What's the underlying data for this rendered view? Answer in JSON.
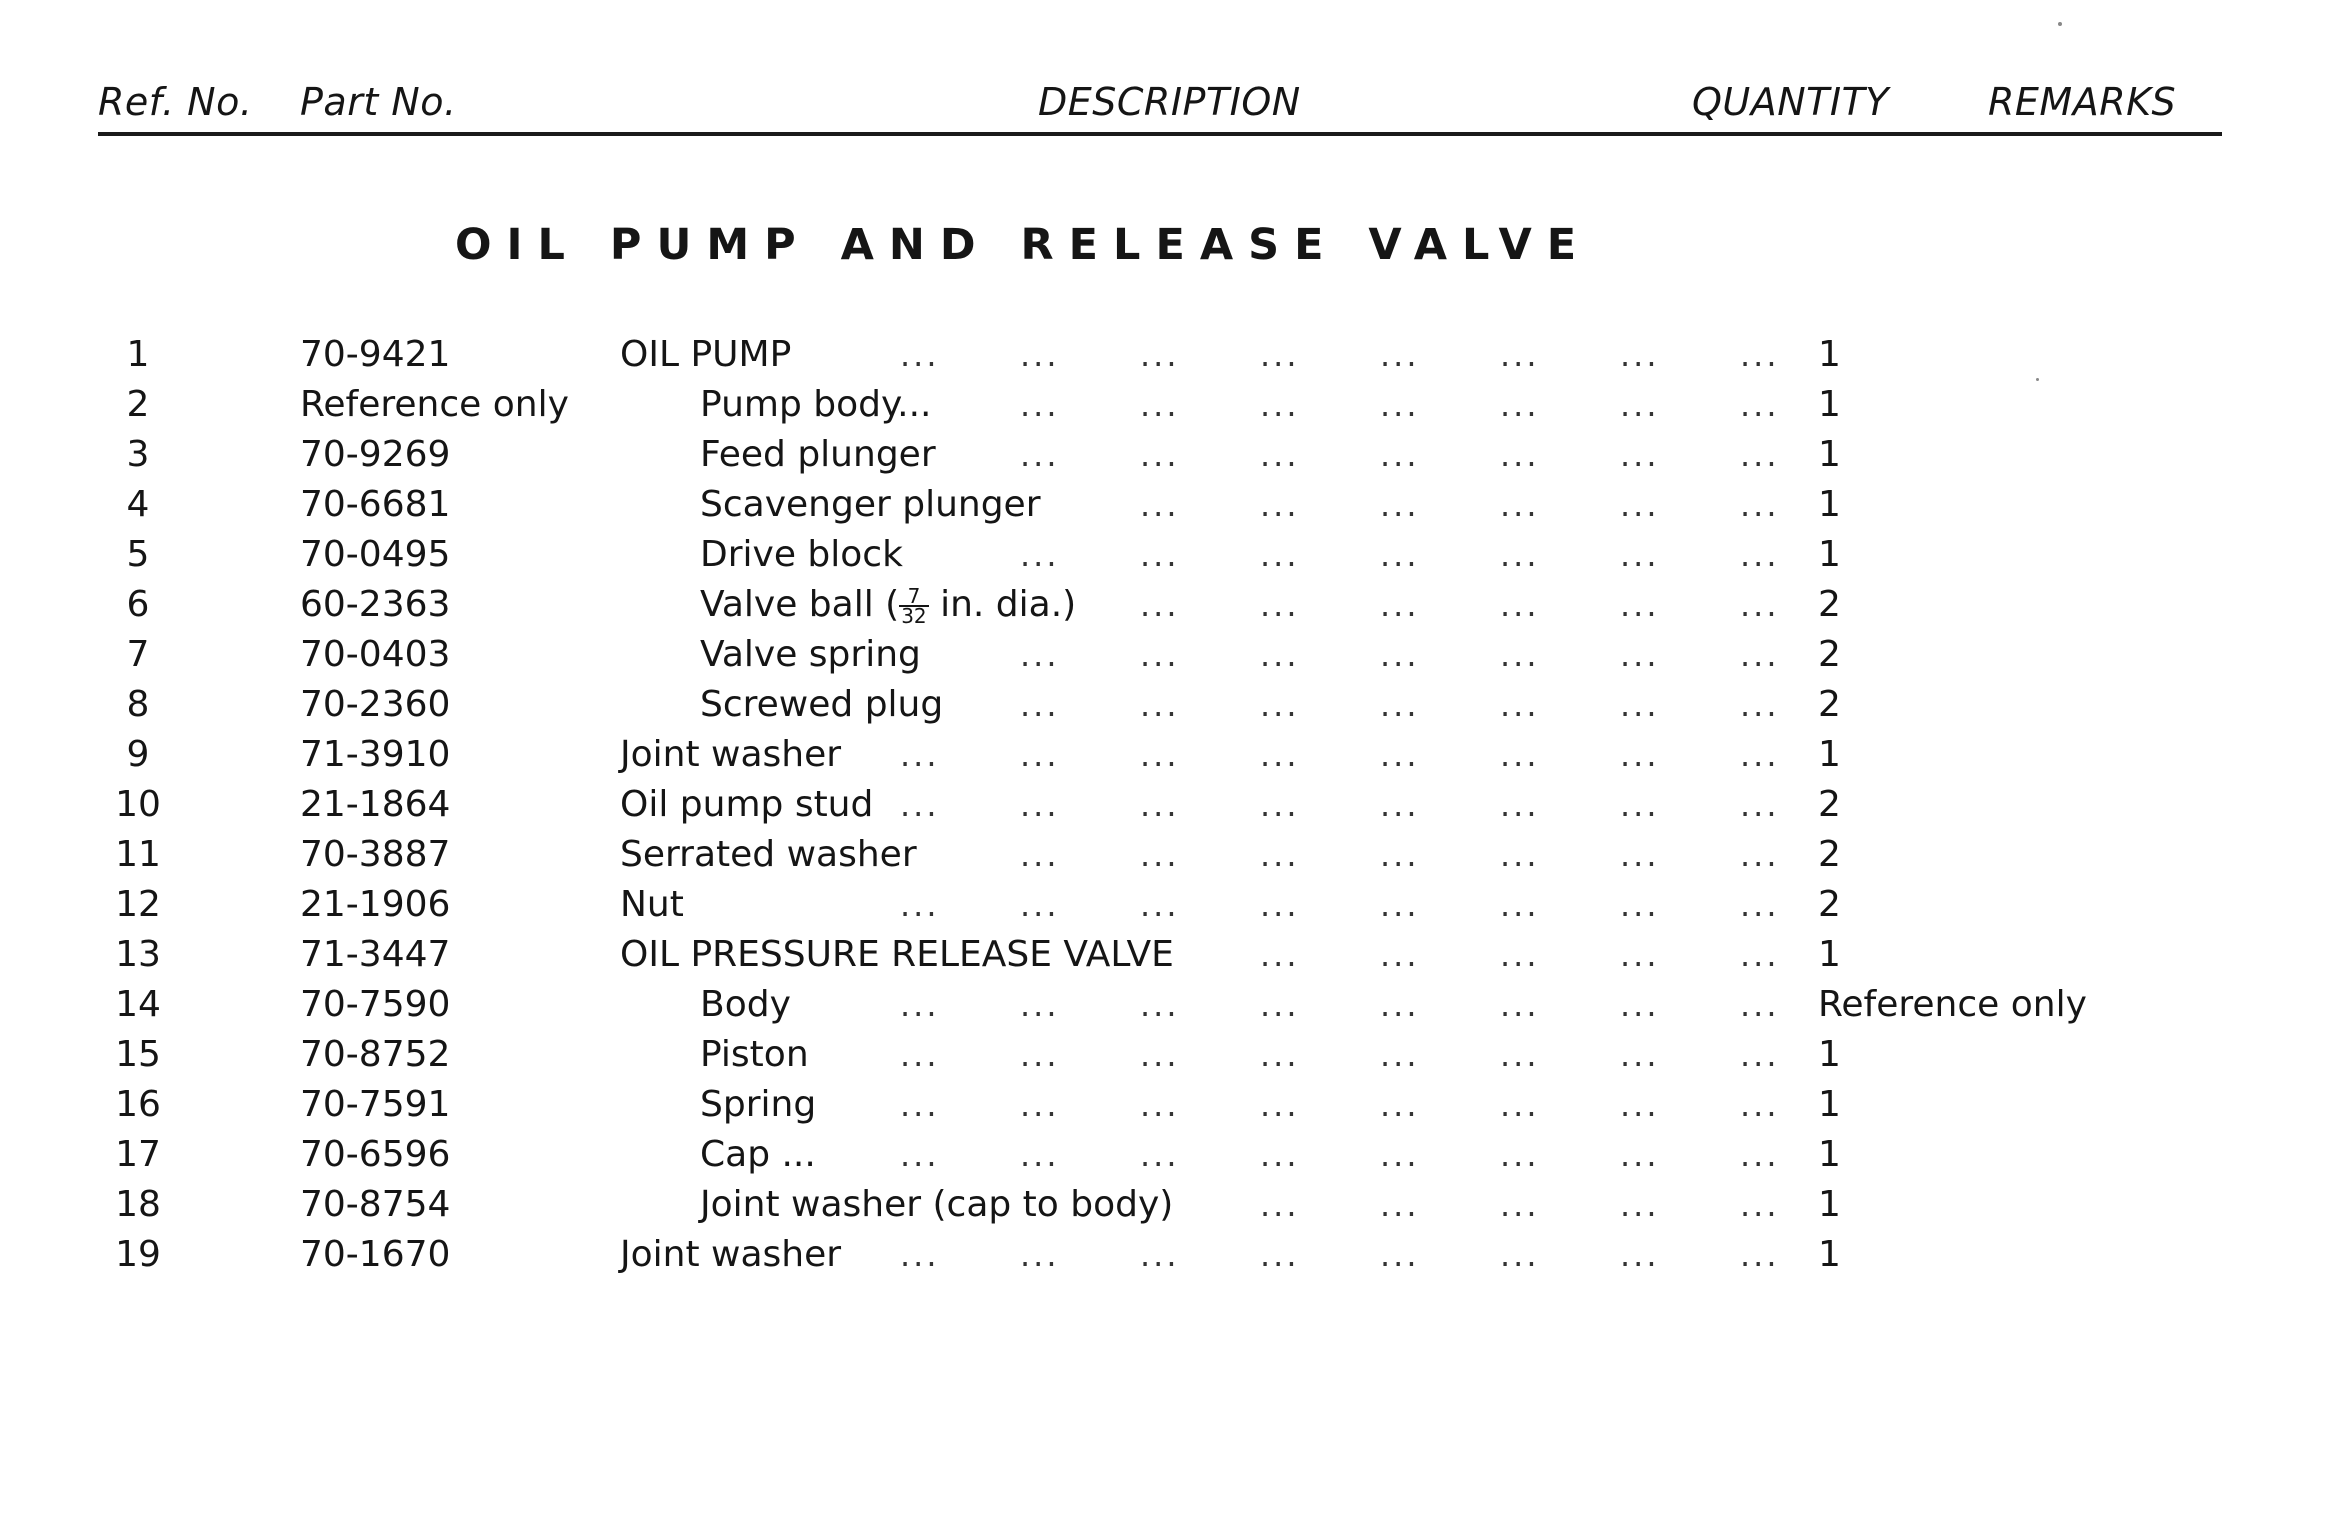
{
  "header": {
    "ref_no": "Ref. No.",
    "part_no": "Part No.",
    "description": "DESCRIPTION",
    "quantity": "QUANTITY",
    "remarks": "REMARKS"
  },
  "section_title": "OIL PUMP AND RELEASE VALVE",
  "rows": [
    {
      "ref": "1",
      "part": "70-9421",
      "desc": "OIL PUMP",
      "indent": false,
      "qty": "1"
    },
    {
      "ref": "2",
      "part": "Reference only",
      "desc": "Pump body...",
      "indent": true,
      "qty": "1"
    },
    {
      "ref": "3",
      "part": "70-9269",
      "desc": "Feed plunger",
      "indent": true,
      "qty": "1"
    },
    {
      "ref": "4",
      "part": "70-6681",
      "desc": "Scavenger plunger",
      "indent": true,
      "qty": "1"
    },
    {
      "ref": "5",
      "part": "70-0495",
      "desc": "Drive block",
      "indent": true,
      "qty": "1"
    },
    {
      "ref": "6",
      "part": "60-2363",
      "desc": "Valve ball (",
      "frac_num": "7",
      "frac_den": "32",
      "desc_after": " in. dia.)",
      "indent": true,
      "qty": "2"
    },
    {
      "ref": "7",
      "part": "70-0403",
      "desc": "Valve spring",
      "indent": true,
      "qty": "2"
    },
    {
      "ref": "8",
      "part": "70-2360",
      "desc": "Screwed plug",
      "indent": true,
      "qty": "2"
    },
    {
      "ref": "9",
      "part": "71-3910",
      "desc": "Joint washer",
      "indent": false,
      "qty": "1"
    },
    {
      "ref": "10",
      "part": "21-1864",
      "desc": "Oil pump stud",
      "indent": false,
      "qty": "2"
    },
    {
      "ref": "11",
      "part": "70-3887",
      "desc": "Serrated washer",
      "indent": false,
      "qty": "2"
    },
    {
      "ref": "12",
      "part": "21-1906",
      "desc": "Nut",
      "indent": false,
      "qty": "2"
    },
    {
      "ref": "13",
      "part": "71-3447",
      "desc": "OIL PRESSURE RELEASE VALVE",
      "indent": false,
      "qty": "1"
    },
    {
      "ref": "14",
      "part": "70-7590",
      "desc": "Body",
      "indent": true,
      "qty": "Reference only"
    },
    {
      "ref": "15",
      "part": "70-8752",
      "desc": "Piston",
      "indent": true,
      "qty": "1"
    },
    {
      "ref": "16",
      "part": "70-7591",
      "desc": "Spring",
      "indent": true,
      "qty": "1"
    },
    {
      "ref": "17",
      "part": "70-6596",
      "desc": "Cap ...",
      "indent": true,
      "qty": "1"
    },
    {
      "ref": "18",
      "part": "70-8754",
      "desc": "Joint washer (cap to body)",
      "indent": true,
      "qty": "1"
    },
    {
      "ref": "19",
      "part": "70-1670",
      "desc": "Joint washer",
      "indent": false,
      "qty": "1"
    }
  ],
  "leader": "..."
}
